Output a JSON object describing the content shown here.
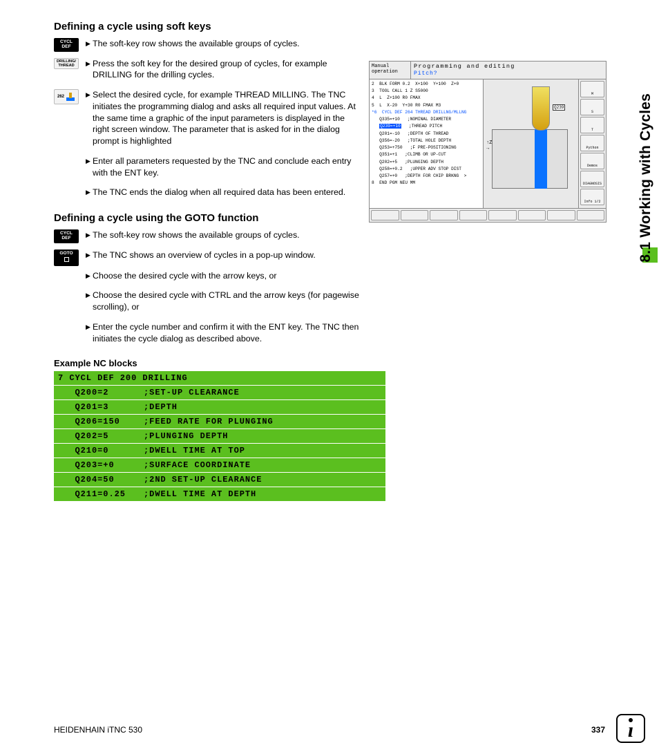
{
  "side_label": "8.1 Working with Cycles",
  "h1": "Defining a cycle using soft keys",
  "h2": "Defining a cycle using the GOTO function",
  "example_h": "Example NC blocks",
  "footer_left": "HEIDENHAIN iTNC 530",
  "footer_page": "337",
  "softkeys": {
    "cycldef": "CYCL\nDEF",
    "drillthread": "DRILLING/\nTHREAD",
    "num262": "262",
    "goto": "GOTO"
  },
  "s1": {
    "b1": "The soft-key row shows the available groups of cycles.",
    "b2": "Press the soft key for the desired group of cycles, for example DRILLING for the drilling cycles.",
    "b3": "Select the desired cycle, for example THREAD MILLING. The TNC initiates the programming dialog and asks all required input values. At the same time a graphic of the input parameters is displayed in the right screen window. The parameter that is asked for in the dialog prompt is highlighted",
    "b4": "Enter all parameters requested by the TNC and conclude each entry with the ENT key.",
    "b5": "The TNC ends the dialog when all required data has been entered."
  },
  "s2": {
    "b1": "The soft-key row shows the available groups of cycles.",
    "b2": "The TNC shows an overview of cycles in a pop-up window.",
    "b3": "Choose the desired cycle with the arrow keys, or",
    "b4": "Choose the desired cycle with CTRL and the arrow keys (for pagewise scrolling), or",
    "b5": "Enter the cycle number and confirm it with the ENT key. The TNC then initiates the cycle dialog as described above."
  },
  "nc": {
    "header": "7 CYCL DEF 200 DRILLING",
    "rows": [
      {
        "p": "   Q200=2",
        "c": ";SET-UP CLEARANCE"
      },
      {
        "p": "   Q201=3",
        "c": ";DEPTH"
      },
      {
        "p": "   Q206=150",
        "c": ";FEED RATE FOR PLUNGING"
      },
      {
        "p": "   Q202=5",
        "c": ";PLUNGING DEPTH"
      },
      {
        "p": "   Q210=0",
        "c": ";DWELL TIME AT TOP"
      },
      {
        "p": "   Q203=+0",
        "c": ";SURFACE COORDINATE"
      },
      {
        "p": "   Q204=50",
        "c": ";2ND SET-UP CLEARANCE"
      },
      {
        "p": "   Q211=0.25",
        "c": ";DWELL TIME AT DEPTH"
      }
    ]
  },
  "fig": {
    "mode": "Manual\noperation",
    "title": "Programming and editing",
    "prompt": "Pitch?",
    "dim": "Q239",
    "code_lines": [
      "2  BLK FORM 0.2  X+100  Y+100  Z+0",
      "3  TOOL CALL 1 Z S5000",
      "4  L  Z+100 R0 FMAX",
      "5  L  X-20  Y+30 R0 FMAX M3"
    ],
    "code_cycle_header": "*6  CYCL DEF 264 THREAD DRILLNG/MLLNG",
    "code_params": [
      {
        "q": "Q335=+10",
        "c": "NOMINAL DIAMETER",
        "hl": false
      },
      {
        "q": "Q239=+10",
        "c": "THREAD PITCH",
        "hl": true
      },
      {
        "q": "Q201=-10",
        "c": "DEPTH OF THREAD",
        "hl": false
      },
      {
        "q": "Q356=-20",
        "c": "TOTAL HOLE DEPTH",
        "hl": false
      },
      {
        "q": "Q253=+750",
        "c": "F PRE-POSITIONING",
        "hl": false
      },
      {
        "q": "Q351=+1",
        "c": "CLIMB OR UP-CUT",
        "hl": false
      },
      {
        "q": "Q202=+5",
        "c": "PLUNGING DEPTH",
        "hl": false
      },
      {
        "q": "Q258=+0.2",
        "c": "UPPER ADV STOP DIST",
        "hl": false
      },
      {
        "q": "Q257=+0",
        "c": "DEPTH FOR CHIP BRKNG  >",
        "hl": false
      }
    ],
    "code_end": "8  END PGM NEU MM",
    "right_buttons": [
      "M",
      "S",
      "T",
      "Python",
      "Demos",
      "DIAGNOSIS",
      "Info 1/2"
    ]
  },
  "colors": {
    "green": "#5bbf1f",
    "blue": "#0a72ff"
  }
}
